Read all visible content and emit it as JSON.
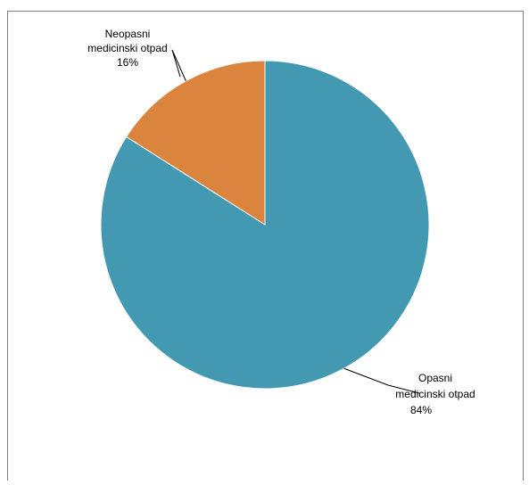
{
  "chart_data": {
    "type": "pie",
    "title": "",
    "slices": [
      {
        "label_lines": [
          "Opasni",
          "medicinski otpad"
        ],
        "value": 84,
        "value_label": "84%",
        "color": "#4399b1"
      },
      {
        "label_lines": [
          "Neopasni",
          "medicinski otpad"
        ],
        "value": 16,
        "value_label": "16%",
        "color": "#db843d"
      }
    ],
    "start_angle_deg": 0,
    "direction": "clockwise",
    "legend": "none"
  }
}
